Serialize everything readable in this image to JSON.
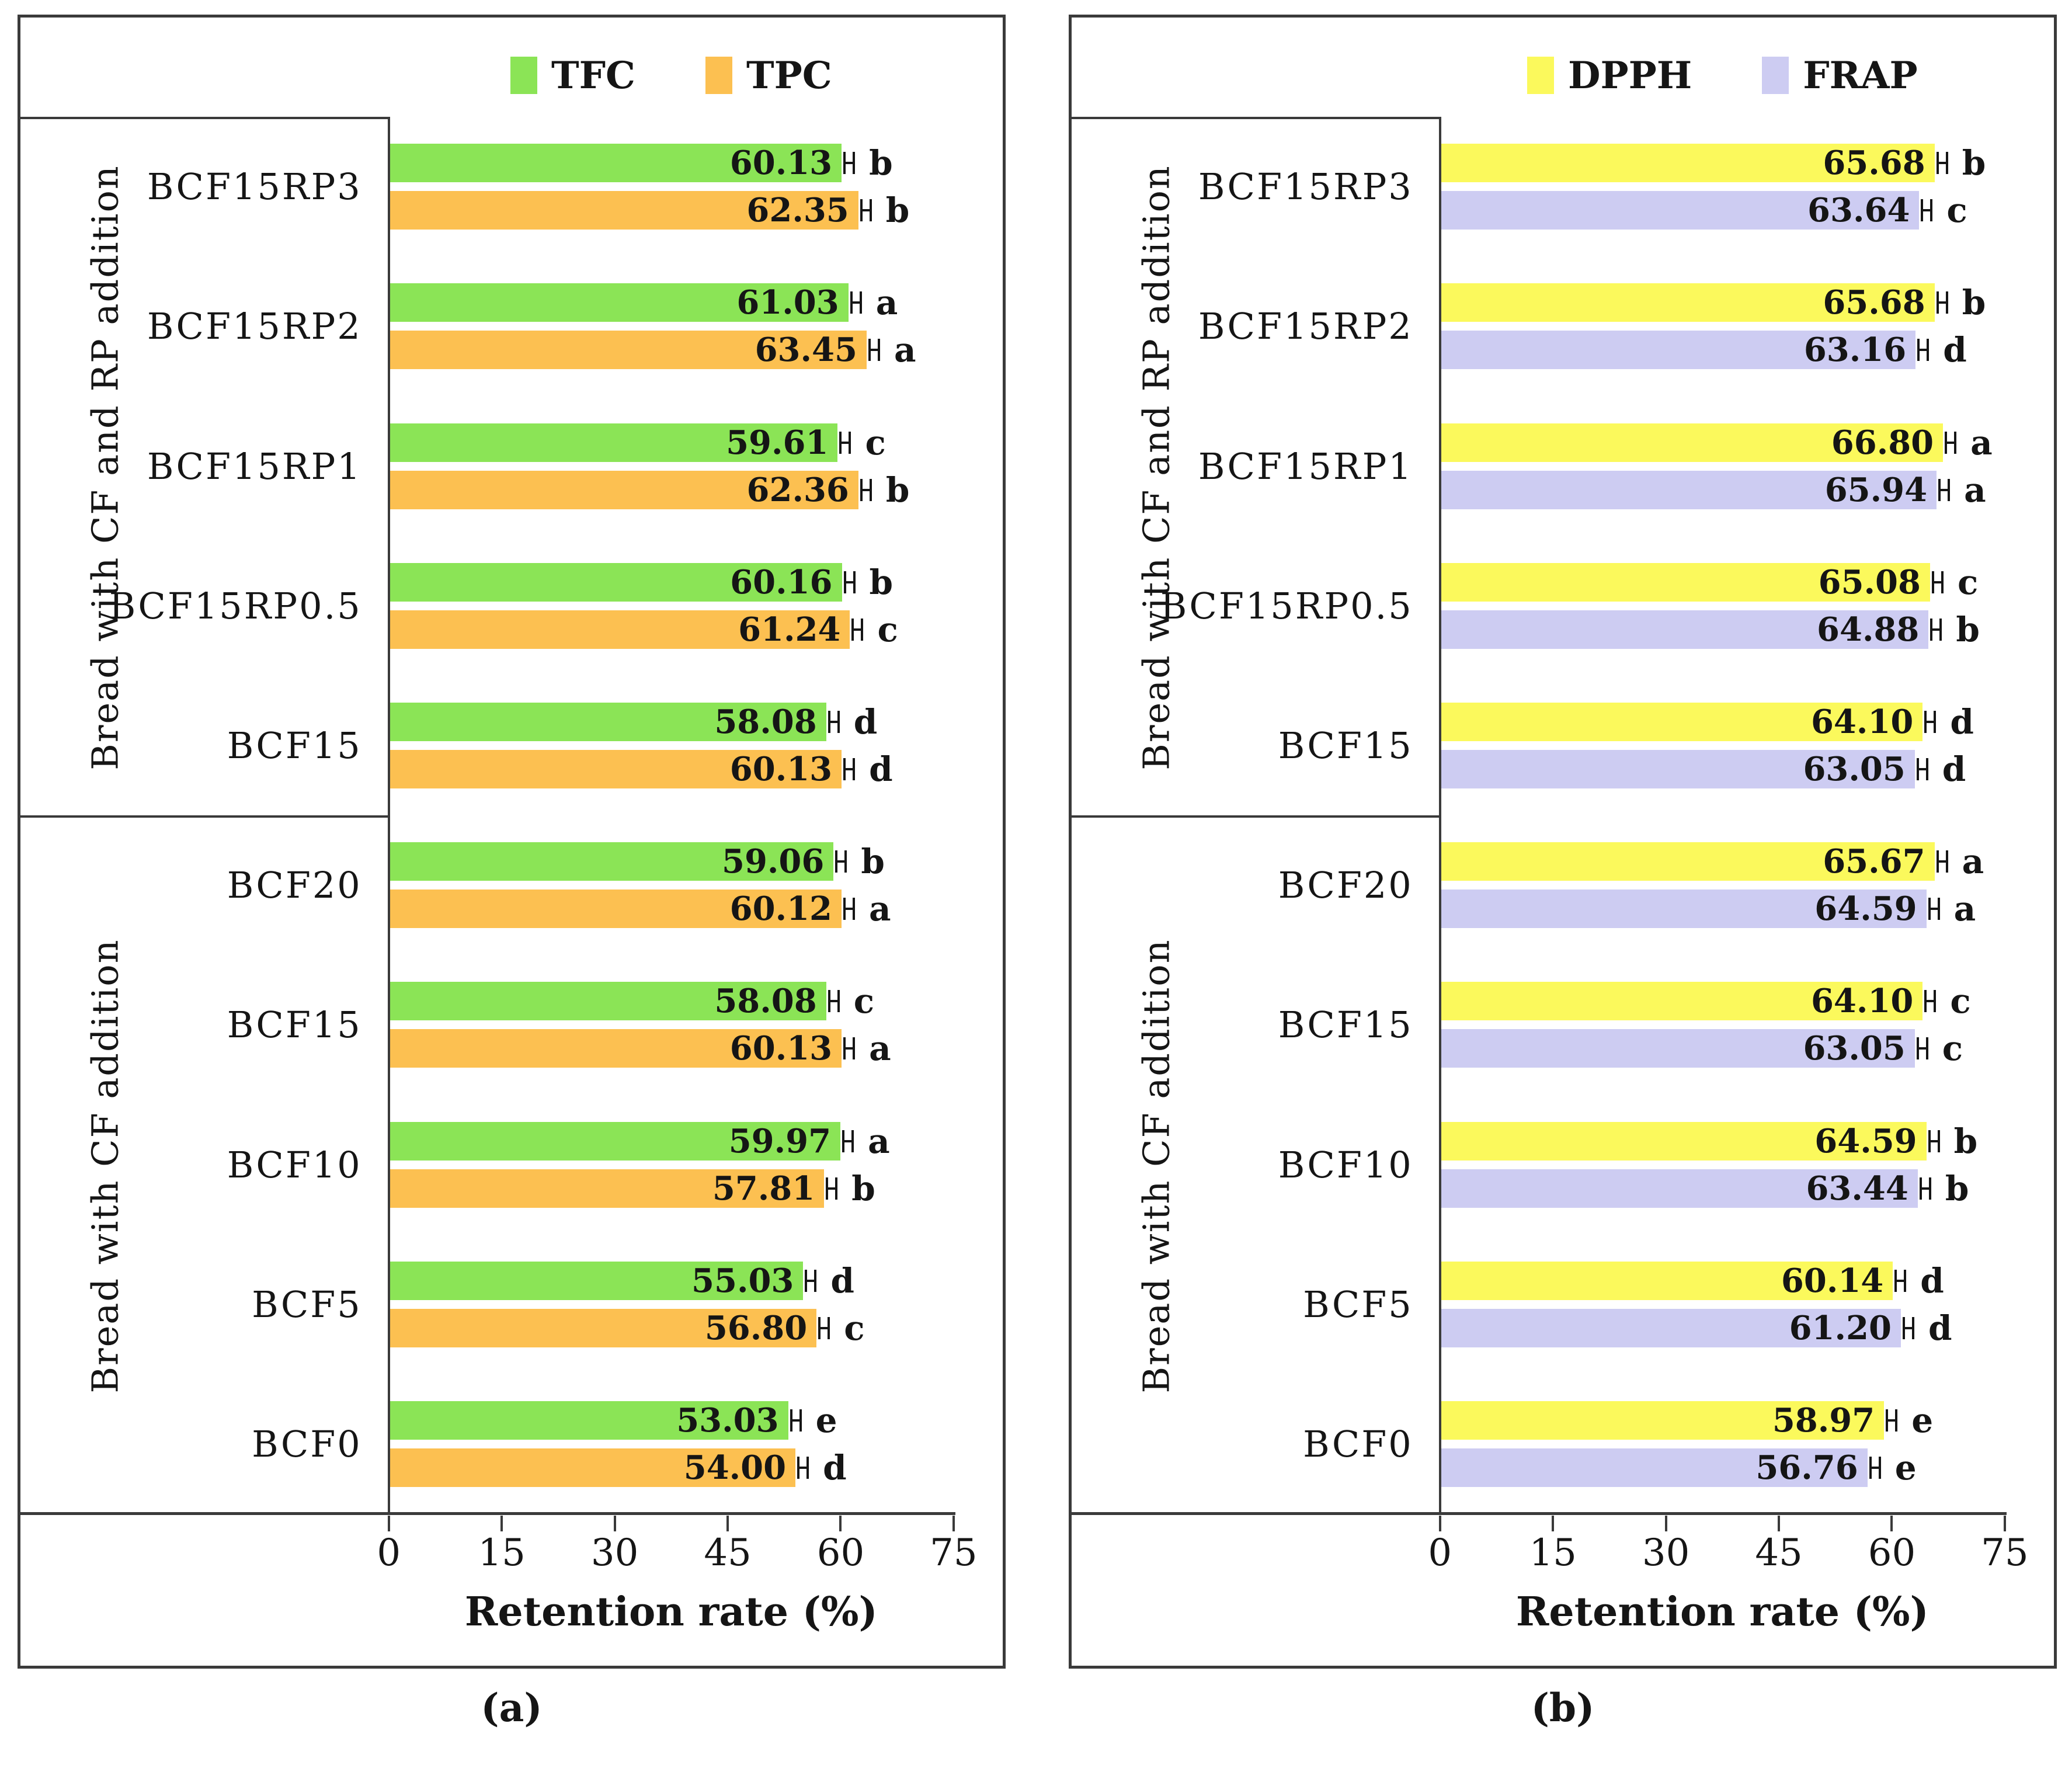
{
  "chart_data": [
    {
      "type": "bar",
      "orientation": "horizontal",
      "panel_caption": "(a)",
      "title": "",
      "xlabel": "Retention rate (%)",
      "xlim": [
        0,
        75
      ],
      "xticks": [
        0,
        15,
        30,
        45,
        60,
        75
      ],
      "legend_position": "top",
      "error_bars": true,
      "legend": [
        {
          "name": "TFC",
          "color": "#8BE456"
        },
        {
          "name": "TPC",
          "color": "#FCC051"
        }
      ],
      "groups": [
        {
          "label": "Bread with CF and RP addition",
          "categories": [
            "BCF15RP3",
            "BCF15RP2",
            "BCF15RP1",
            "BCF15RP0.5",
            "BCF15"
          ],
          "series": [
            {
              "name": "TFC",
              "values": [
                60.13,
                61.03,
                59.61,
                60.16,
                58.08
              ],
              "sig_letters": [
                "b",
                "a",
                "c",
                "b",
                "d"
              ]
            },
            {
              "name": "TPC",
              "values": [
                62.35,
                63.45,
                62.36,
                61.24,
                60.13
              ],
              "sig_letters": [
                "b",
                "a",
                "b",
                "c",
                "d"
              ]
            }
          ]
        },
        {
          "label": "Bread with CF addition",
          "categories": [
            "BCF20",
            "BCF15",
            "BCF10",
            "BCF5",
            "BCF0"
          ],
          "series": [
            {
              "name": "TFC",
              "values": [
                59.06,
                58.08,
                59.97,
                55.03,
                53.03
              ],
              "sig_letters": [
                "b",
                "c",
                "a",
                "d",
                "e"
              ]
            },
            {
              "name": "TPC",
              "values": [
                60.12,
                60.13,
                57.81,
                56.8,
                54.0
              ],
              "sig_letters": [
                "a",
                "a",
                "b",
                "c",
                "d"
              ]
            }
          ]
        }
      ]
    },
    {
      "type": "bar",
      "orientation": "horizontal",
      "panel_caption": "(b)",
      "title": "",
      "xlabel": "Retention rate (%)",
      "xlim": [
        0,
        75
      ],
      "xticks": [
        0,
        15,
        30,
        45,
        60,
        75
      ],
      "legend_position": "top",
      "error_bars": true,
      "legend": [
        {
          "name": "DPPH",
          "color": "#FBF95C"
        },
        {
          "name": "FRAP",
          "color": "#CDCCF2"
        }
      ],
      "groups": [
        {
          "label": "Bread with CF and RP addition",
          "categories": [
            "BCF15RP3",
            "BCF15RP2",
            "BCF15RP1",
            "BCF15RP0.5",
            "BCF15"
          ],
          "series": [
            {
              "name": "DPPH",
              "values": [
                65.68,
                65.68,
                66.8,
                65.08,
                64.1
              ],
              "sig_letters": [
                "b",
                "b",
                "a",
                "c",
                "d"
              ]
            },
            {
              "name": "FRAP",
              "values": [
                63.64,
                63.16,
                65.94,
                64.88,
                63.05
              ],
              "sig_letters": [
                "c",
                "d",
                "a",
                "b",
                "d"
              ]
            }
          ]
        },
        {
          "label": "Bread with CF addition",
          "categories": [
            "BCF20",
            "BCF15",
            "BCF10",
            "BCF5",
            "BCF0"
          ],
          "series": [
            {
              "name": "DPPH",
              "values": [
                65.67,
                64.1,
                64.59,
                60.14,
                58.97
              ],
              "sig_letters": [
                "a",
                "c",
                "b",
                "d",
                "e"
              ]
            },
            {
              "name": "FRAP",
              "values": [
                64.59,
                63.05,
                63.44,
                61.2,
                56.76
              ],
              "sig_letters": [
                "a",
                "c",
                "b",
                "d",
                "e"
              ]
            }
          ]
        }
      ]
    }
  ]
}
